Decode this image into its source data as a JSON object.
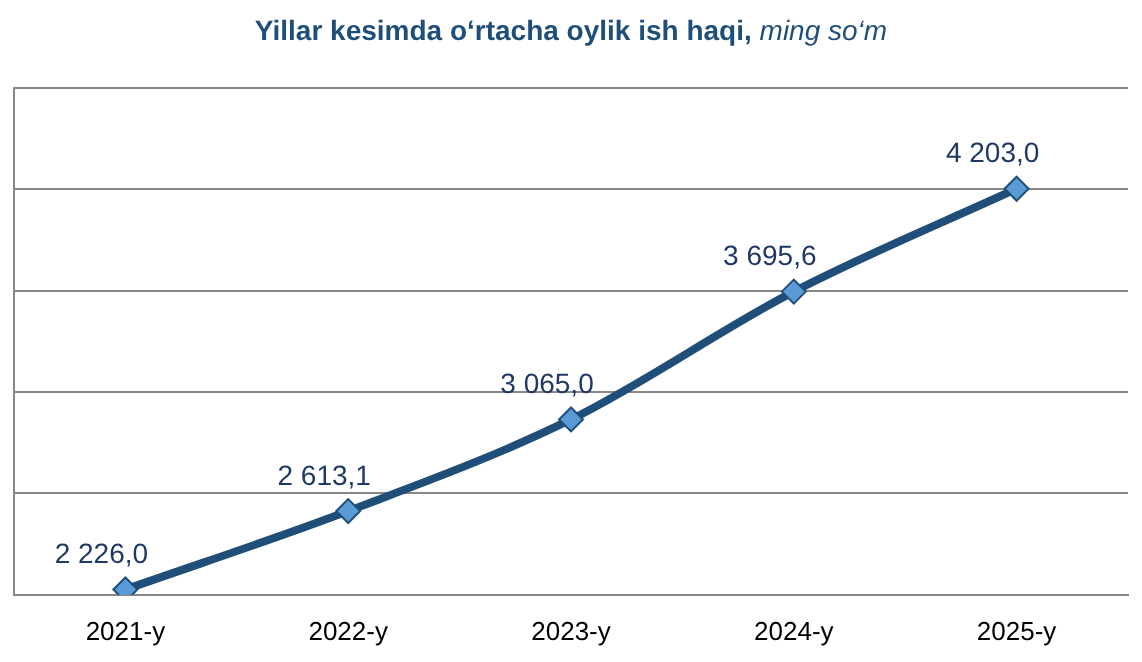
{
  "chart_data": {
    "type": "line",
    "title": "Yillar kesimda o‘rtacha oylik ish haqi, ming so‘m",
    "categories": [
      "2021-y",
      "2022-y",
      "2023-y",
      "2024-y",
      "2025-y"
    ],
    "series": [
      {
        "color": "#1f4e79",
        "values": [
          2226.0,
          2613.1,
          3065.0,
          3695.6,
          4203.0
        ],
        "value_labels": [
          "2 226,0",
          "2 613,1",
          "3 065,0",
          "3 695,6",
          "4 203,0"
        ]
      }
    ],
    "ylim": [
      2200,
      4700
    ],
    "yticks": [
      {
        "value": 2200,
        "label": null
      },
      {
        "value": 2700,
        "label": null
      },
      {
        "value": 3200,
        "label": null
      },
      {
        "value": 3700,
        "label": null
      },
      {
        "value": 4200,
        "label": null
      },
      {
        "value": 4700,
        "label": null
      }
    ],
    "tick_labels": "x",
    "grid": "y",
    "legend": false,
    "marker": "diamond",
    "line_style": "solid"
  }
}
